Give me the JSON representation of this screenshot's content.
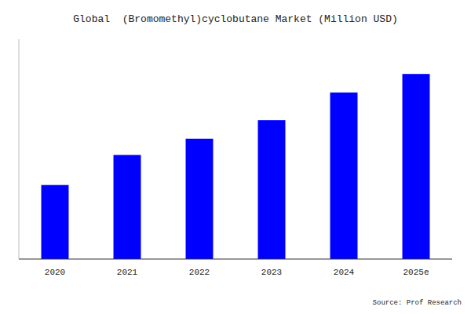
{
  "chart_data": {
    "type": "bar",
    "title": "Global  (Bromomethyl)cyclobutane Market (Million USD)",
    "categories": [
      "2020",
      "2021",
      "2022",
      "2023",
      "2024",
      "2025e"
    ],
    "values": [
      32,
      45,
      52,
      60,
      72,
      80
    ],
    "color": "#0000FF",
    "ylim": [
      0,
      95
    ],
    "grid": false,
    "tick_labels": "x",
    "annotations": [
      "Source: Prof Research"
    ]
  }
}
